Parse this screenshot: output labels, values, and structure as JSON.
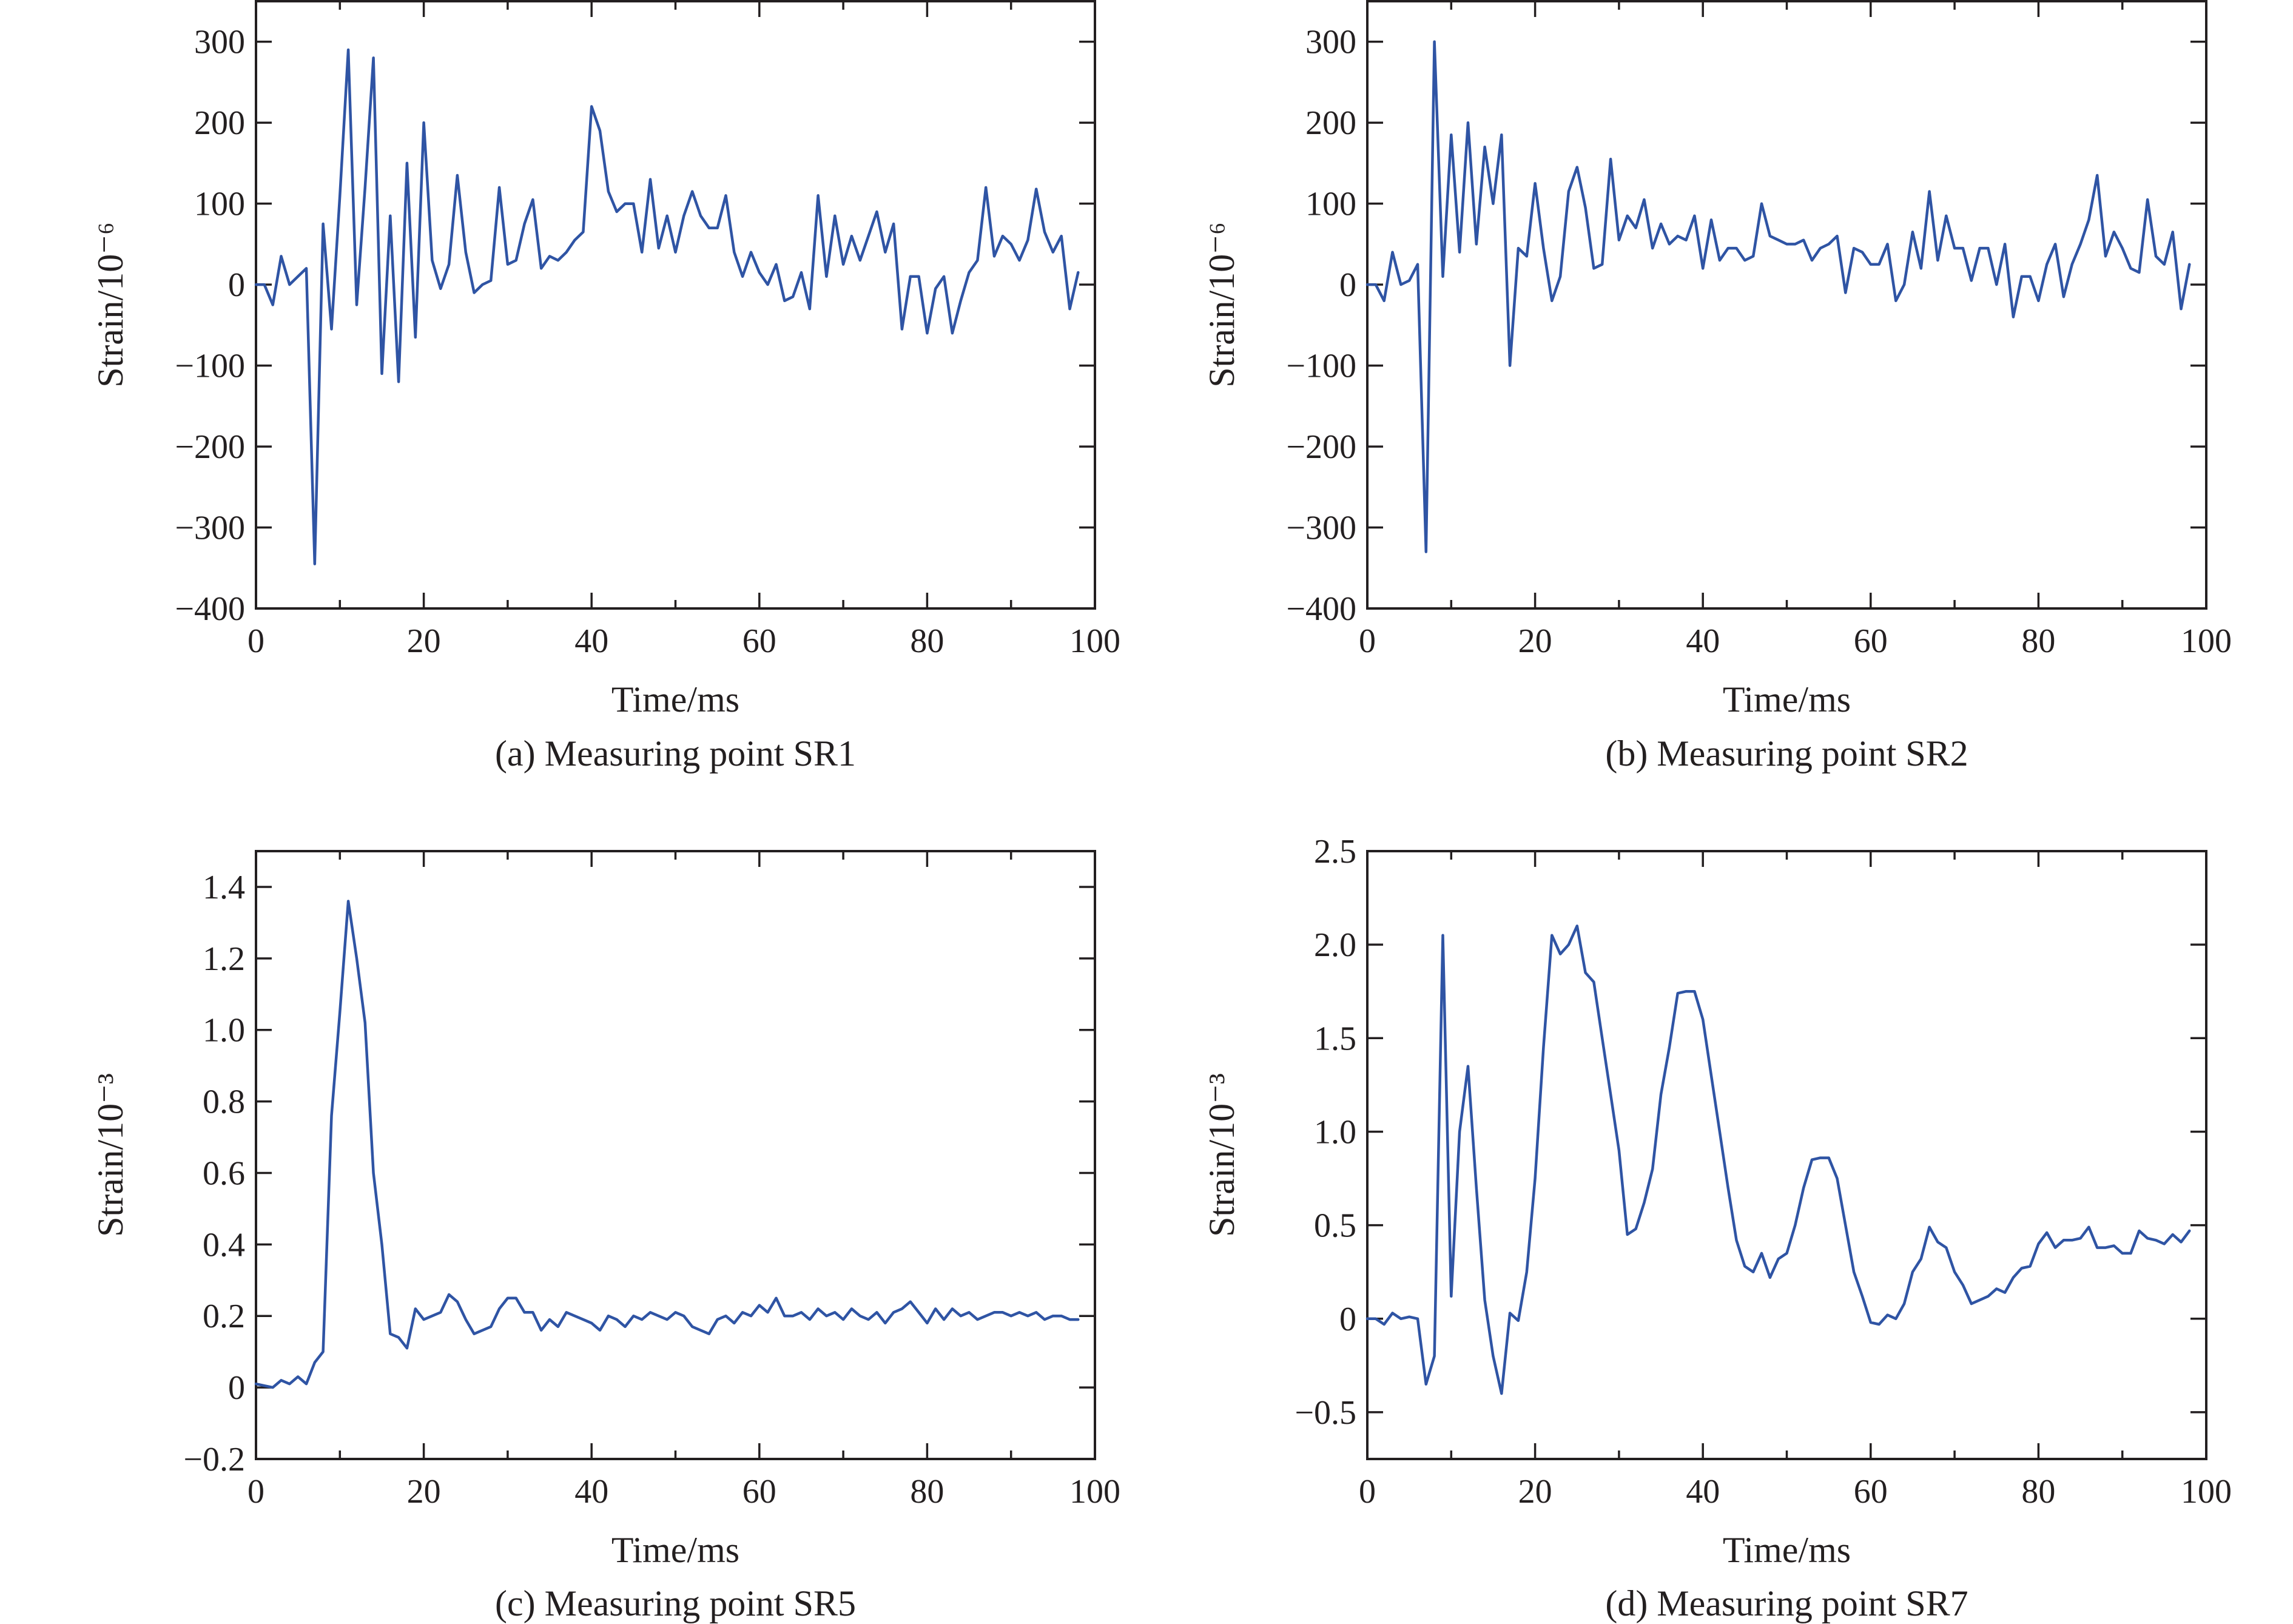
{
  "colors": {
    "line": "#2f54a4",
    "axis": "#231f20"
  },
  "chart_data": [
    {
      "type": "line",
      "caption": "(a) Measuring point SR1",
      "xlabel": "Time/ms",
      "ylabel": "Strain/10⁻⁶",
      "xlim": [
        0,
        100
      ],
      "ylim": [
        -400,
        350
      ],
      "xticks": [
        0,
        20,
        40,
        60,
        80,
        100
      ],
      "yticks": [
        -400,
        -300,
        -200,
        -100,
        0,
        100,
        200,
        300
      ],
      "ytick_labels": [
        "−400",
        "−300",
        "−200",
        "−100",
        "0",
        "100",
        "200",
        "300"
      ],
      "series": [
        {
          "x": [
            0,
            1,
            2,
            3,
            4,
            5,
            6,
            7,
            8,
            9,
            10,
            11,
            12,
            13,
            14,
            15,
            16,
            17,
            18,
            19,
            20,
            21,
            22,
            23,
            24,
            25,
            26,
            27,
            28,
            29,
            30,
            31,
            32,
            33,
            34,
            35,
            36,
            37,
            38,
            39,
            40,
            41,
            42,
            43,
            44,
            45,
            46,
            47,
            48,
            49,
            50,
            51,
            52,
            53,
            54,
            55,
            56,
            57,
            58,
            59,
            60,
            61,
            62,
            63,
            64,
            65,
            66,
            67,
            68,
            69,
            70,
            71,
            72,
            73,
            74,
            75,
            76,
            77,
            78,
            79,
            80,
            81,
            82,
            83,
            84,
            85,
            86,
            87,
            88,
            89,
            90,
            91,
            92,
            93,
            94,
            95,
            96,
            97,
            98
          ],
          "values": [
            0,
            0,
            -25,
            35,
            0,
            10,
            20,
            -345,
            75,
            -55,
            110,
            290,
            -25,
            120,
            280,
            -110,
            85,
            -120,
            150,
            -65,
            200,
            30,
            -5,
            25,
            135,
            40,
            -10,
            0,
            5,
            120,
            25,
            30,
            75,
            105,
            20,
            35,
            30,
            40,
            55,
            65,
            220,
            190,
            115,
            90,
            100,
            100,
            40,
            130,
            45,
            85,
            40,
            85,
            115,
            85,
            70,
            70,
            110,
            40,
            10,
            40,
            15,
            0,
            25,
            -20,
            -15,
            15,
            -30,
            110,
            10,
            85,
            25,
            60,
            30,
            60,
            90,
            40,
            75,
            -55,
            10,
            10,
            -60,
            -5,
            10,
            -60,
            -20,
            15,
            30,
            120,
            35,
            60,
            50,
            30,
            55,
            118,
            65,
            40,
            60,
            -30,
            15
          ]
        }
      ]
    },
    {
      "type": "line",
      "caption": "(b) Measuring point SR2",
      "xlabel": "Time/ms",
      "ylabel": "Strain/10⁻⁶",
      "xlim": [
        0,
        100
      ],
      "ylim": [
        -400,
        350
      ],
      "xticks": [
        0,
        20,
        40,
        60,
        80,
        100
      ],
      "yticks": [
        -400,
        -300,
        -200,
        -100,
        0,
        100,
        200,
        300
      ],
      "ytick_labels": [
        "−400",
        "−300",
        "−200",
        "−100",
        "0",
        "100",
        "200",
        "300"
      ],
      "series": [
        {
          "x": [
            0,
            1,
            2,
            3,
            4,
            5,
            6,
            7,
            8,
            9,
            10,
            11,
            12,
            13,
            14,
            15,
            16,
            17,
            18,
            19,
            20,
            21,
            22,
            23,
            24,
            25,
            26,
            27,
            28,
            29,
            30,
            31,
            32,
            33,
            34,
            35,
            36,
            37,
            38,
            39,
            40,
            41,
            42,
            43,
            44,
            45,
            46,
            47,
            48,
            49,
            50,
            51,
            52,
            53,
            54,
            55,
            56,
            57,
            58,
            59,
            60,
            61,
            62,
            63,
            64,
            65,
            66,
            67,
            68,
            69,
            70,
            71,
            72,
            73,
            74,
            75,
            76,
            77,
            78,
            79,
            80,
            81,
            82,
            83,
            84,
            85,
            86,
            87,
            88,
            89,
            90,
            91,
            92,
            93,
            94,
            95,
            96,
            97,
            98
          ],
          "values": [
            0,
            0,
            -20,
            40,
            0,
            5,
            25,
            -330,
            300,
            10,
            185,
            40,
            200,
            50,
            170,
            100,
            185,
            -100,
            45,
            35,
            125,
            45,
            -20,
            10,
            115,
            145,
            95,
            20,
            25,
            155,
            55,
            85,
            70,
            105,
            45,
            75,
            50,
            60,
            55,
            85,
            20,
            80,
            30,
            45,
            45,
            30,
            35,
            100,
            60,
            55,
            50,
            50,
            55,
            30,
            45,
            50,
            60,
            -10,
            45,
            40,
            25,
            25,
            50,
            -20,
            0,
            65,
            20,
            115,
            30,
            85,
            45,
            45,
            5,
            45,
            45,
            0,
            50,
            -40,
            10,
            10,
            -20,
            25,
            50,
            -15,
            25,
            50,
            80,
            135,
            35,
            65,
            45,
            20,
            15,
            105,
            35,
            25,
            65,
            -30,
            25
          ]
        }
      ]
    },
    {
      "type": "line",
      "caption": "(c) Measuring point SR5",
      "xlabel": "Time/ms",
      "ylabel": "Strain/10⁻³",
      "xlim": [
        0,
        100
      ],
      "ylim": [
        -0.2,
        1.5
      ],
      "xticks": [
        0,
        20,
        40,
        60,
        80,
        100
      ],
      "yticks": [
        -0.2,
        0,
        0.2,
        0.4,
        0.6,
        0.8,
        1.0,
        1.2,
        1.4
      ],
      "ytick_labels": [
        "−0.2",
        "0",
        "0.2",
        "0.4",
        "0.6",
        "0.8",
        "1.0",
        "1.2",
        "1.4"
      ],
      "series": [
        {
          "x": [
            0,
            1,
            2,
            3,
            4,
            5,
            6,
            7,
            8,
            9,
            10,
            11,
            12,
            13,
            14,
            15,
            16,
            17,
            18,
            19,
            20,
            21,
            22,
            23,
            24,
            25,
            26,
            27,
            28,
            29,
            30,
            31,
            32,
            33,
            34,
            35,
            36,
            37,
            38,
            39,
            40,
            41,
            42,
            43,
            44,
            45,
            46,
            47,
            48,
            49,
            50,
            51,
            52,
            53,
            54,
            55,
            56,
            57,
            58,
            59,
            60,
            61,
            62,
            63,
            64,
            65,
            66,
            67,
            68,
            69,
            70,
            71,
            72,
            73,
            74,
            75,
            76,
            77,
            78,
            79,
            80,
            81,
            82,
            83,
            84,
            85,
            86,
            87,
            88,
            89,
            90,
            91,
            92,
            93,
            94,
            95,
            96,
            97,
            98
          ],
          "values": [
            0.01,
            0.005,
            0.0,
            0.02,
            0.01,
            0.03,
            0.01,
            0.07,
            0.1,
            0.76,
            1.05,
            1.36,
            1.2,
            1.02,
            0.6,
            0.4,
            0.15,
            0.14,
            0.11,
            0.22,
            0.19,
            0.2,
            0.21,
            0.26,
            0.24,
            0.19,
            0.15,
            0.16,
            0.17,
            0.22,
            0.25,
            0.25,
            0.21,
            0.21,
            0.16,
            0.19,
            0.17,
            0.21,
            0.2,
            0.19,
            0.18,
            0.16,
            0.2,
            0.19,
            0.17,
            0.2,
            0.19,
            0.21,
            0.2,
            0.19,
            0.21,
            0.2,
            0.17,
            0.16,
            0.15,
            0.19,
            0.2,
            0.18,
            0.21,
            0.2,
            0.23,
            0.21,
            0.25,
            0.2,
            0.2,
            0.21,
            0.19,
            0.22,
            0.2,
            0.21,
            0.19,
            0.22,
            0.2,
            0.19,
            0.21,
            0.18,
            0.21,
            0.22,
            0.24,
            0.21,
            0.18,
            0.22,
            0.19,
            0.22,
            0.2,
            0.21,
            0.19,
            0.2,
            0.21,
            0.21,
            0.2,
            0.21,
            0.2,
            0.21,
            0.19,
            0.2,
            0.2,
            0.19,
            0.19
          ]
        }
      ]
    },
    {
      "type": "line",
      "caption": "(d) Measuring point SR7",
      "xlabel": "Time/ms",
      "ylabel": "Strain/10⁻³",
      "xlim": [
        0,
        100
      ],
      "ylim": [
        -0.75,
        2.5
      ],
      "xticks": [
        0,
        20,
        40,
        60,
        80,
        100
      ],
      "yticks": [
        -0.5,
        0,
        0.5,
        1.0,
        1.5,
        2.0,
        2.5
      ],
      "ytick_labels": [
        "−0.5",
        "0",
        "0.5",
        "1.0",
        "1.5",
        "2.0",
        "2.5"
      ],
      "series": [
        {
          "x": [
            0,
            1,
            2,
            3,
            4,
            5,
            6,
            7,
            8,
            9,
            10,
            11,
            12,
            13,
            14,
            15,
            16,
            17,
            18,
            19,
            20,
            21,
            22,
            23,
            24,
            25,
            26,
            27,
            28,
            29,
            30,
            31,
            32,
            33,
            34,
            35,
            36,
            37,
            38,
            39,
            40,
            41,
            42,
            43,
            44,
            45,
            46,
            47,
            48,
            49,
            50,
            51,
            52,
            53,
            54,
            55,
            56,
            57,
            58,
            59,
            60,
            61,
            62,
            63,
            64,
            65,
            66,
            67,
            68,
            69,
            70,
            71,
            72,
            73,
            74,
            75,
            76,
            77,
            78,
            79,
            80,
            81,
            82,
            83,
            84,
            85,
            86,
            87,
            88,
            89,
            90,
            91,
            92,
            93,
            94,
            95,
            96,
            97,
            98
          ],
          "values": [
            0.0,
            0.0,
            -0.03,
            0.03,
            0.0,
            0.01,
            0.0,
            -0.35,
            -0.2,
            2.05,
            0.12,
            1.0,
            1.35,
            0.7,
            0.1,
            -0.2,
            -0.4,
            0.03,
            -0.01,
            0.25,
            0.75,
            1.45,
            2.05,
            1.95,
            2.0,
            2.1,
            1.85,
            1.8,
            1.5,
            1.2,
            0.9,
            0.45,
            0.48,
            0.62,
            0.8,
            1.2,
            1.45,
            1.74,
            1.75,
            1.75,
            1.6,
            1.3,
            1.0,
            0.7,
            0.42,
            0.28,
            0.25,
            0.35,
            0.22,
            0.32,
            0.35,
            0.5,
            0.7,
            0.85,
            0.86,
            0.86,
            0.75,
            0.5,
            0.25,
            0.12,
            -0.02,
            -0.03,
            0.02,
            0.0,
            0.08,
            0.25,
            0.32,
            0.49,
            0.41,
            0.38,
            0.25,
            0.18,
            0.08,
            0.1,
            0.12,
            0.16,
            0.14,
            0.22,
            0.27,
            0.28,
            0.4,
            0.46,
            0.38,
            0.42,
            0.42,
            0.43,
            0.49,
            0.38,
            0.38,
            0.39,
            0.35,
            0.35,
            0.47,
            0.43,
            0.42,
            0.4,
            0.45,
            0.41,
            0.47
          ]
        }
      ]
    }
  ]
}
